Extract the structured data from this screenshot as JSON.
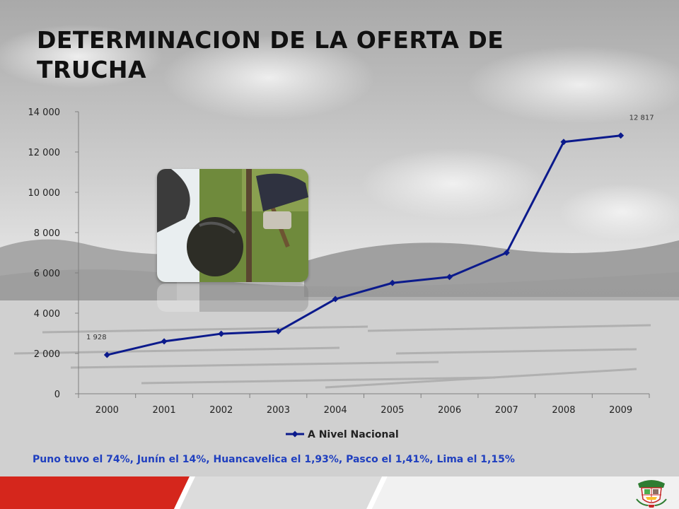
{
  "slide": {
    "title": "DETERMINACION DE LA OFERTA DE TRUCHA",
    "note": "Puno tuvo el 74%, Junín el 14%, Huancavelica el 1,93%, Pasco el 1,41%, Lima el 1,15%"
  },
  "colors": {
    "series": "#0b1a8c",
    "note": "#1f3fbf",
    "footer_red": "#d5261c"
  },
  "chart_data": {
    "type": "line",
    "categories": [
      "2000",
      "2001",
      "2002",
      "2003",
      "2004",
      "2005",
      "2006",
      "2007",
      "2008",
      "2009"
    ],
    "series": [
      {
        "name": "A Nivel Nacional",
        "values": [
          1928,
          2600,
          2980,
          3100,
          4700,
          5500,
          5800,
          7000,
          12500,
          12817
        ]
      }
    ],
    "y_ticks": [
      "0",
      "2 000",
      "4 000",
      "6 000",
      "8 000",
      "10 000",
      "12 000",
      "14 000"
    ],
    "ylim": [
      0,
      14000
    ],
    "data_labels": [
      {
        "index": 0,
        "text": "1 928"
      },
      {
        "index": 9,
        "text": "12 817"
      }
    ],
    "legend_position": "bottom",
    "grid": false
  }
}
